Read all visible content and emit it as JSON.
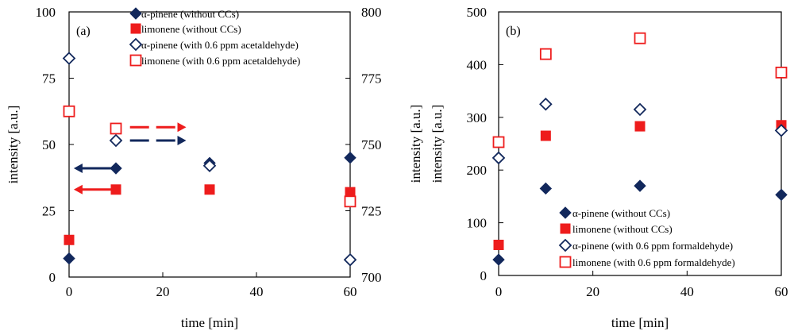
{
  "colors": {
    "navy": "#12285c",
    "red": "#ee1c1c"
  },
  "chart_data": [
    {
      "type": "scatter",
      "panel_label": "(a)",
      "xlabel": "time [min]",
      "ylabel": "intensity [a.u.]",
      "xlim": [
        0,
        60
      ],
      "xticks": [
        "0",
        "20",
        "40",
        "60"
      ],
      "ylim_left": [
        0,
        100
      ],
      "yticks_left": [
        "0",
        "25",
        "50",
        "75",
        "100"
      ],
      "ylim_right": [
        700,
        800
      ],
      "yticks_right": [
        "700",
        "725",
        "750",
        "775",
        "800"
      ],
      "series": [
        {
          "name": "α-pinene (without CCs)",
          "marker": "diamond-filled",
          "color": "navy",
          "axis": "left",
          "points": [
            {
              "x": 0,
              "y": 7
            },
            {
              "x": 10,
              "y": 41
            },
            {
              "x": 30,
              "y": 43
            },
            {
              "x": 60,
              "y": 45
            }
          ]
        },
        {
          "name": "limonene (without CCs)",
          "marker": "square-filled",
          "color": "red",
          "axis": "left",
          "points": [
            {
              "x": 0,
              "y": 14
            },
            {
              "x": 10,
              "y": 33
            },
            {
              "x": 30,
              "y": 33
            },
            {
              "x": 60,
              "y": 32
            }
          ]
        },
        {
          "name": "α-pinene (with 0.6 ppm acetaldehyde)",
          "marker": "diamond-open",
          "color": "navy",
          "axis": "right",
          "points": [
            {
              "x": 0,
              "y": 782.5
            },
            {
              "x": 10,
              "y": 751.5
            },
            {
              "x": 30,
              "y": 742
            },
            {
              "x": 60,
              "y": 706.5
            }
          ]
        },
        {
          "name": "limonene (with 0.6 ppm acetaldehyde)",
          "marker": "square-open",
          "color": "red",
          "axis": "right",
          "points": [
            {
              "x": 0,
              "y": 762.5
            },
            {
              "x": 10,
              "y": 756
            },
            {
              "x": 60,
              "y": 728.5
            }
          ]
        }
      ],
      "arrows": [
        {
          "color": "navy",
          "style": "solid",
          "axis": "left",
          "y": 41,
          "x_from": 9,
          "x_to": 1
        },
        {
          "color": "red",
          "style": "solid",
          "axis": "left",
          "y": 33,
          "x_from": 9,
          "x_to": 1
        },
        {
          "color": "navy",
          "style": "dashed",
          "axis": "right",
          "y": 751.5,
          "x_from": 13,
          "x_to": 25
        },
        {
          "color": "red",
          "style": "dashed",
          "axis": "right",
          "y": 756.5,
          "x_from": 13,
          "x_to": 25
        }
      ]
    },
    {
      "type": "scatter",
      "panel_label": "(b)",
      "xlabel": "time [min]",
      "ylabel": "intensity [a.u.]",
      "ylabel2": "intensity [a.u.]",
      "xlim": [
        0,
        60
      ],
      "xticks": [
        "0",
        "20",
        "40",
        "60"
      ],
      "ylim": [
        0,
        500
      ],
      "yticks": [
        "0",
        "100",
        "200",
        "300",
        "400",
        "500"
      ],
      "series": [
        {
          "name": "α-pinene (without CCs)",
          "marker": "diamond-filled",
          "color": "navy",
          "points": [
            {
              "x": 0,
              "y": 30
            },
            {
              "x": 10,
              "y": 165
            },
            {
              "x": 30,
              "y": 170
            },
            {
              "x": 60,
              "y": 153
            }
          ]
        },
        {
          "name": "limonene (without CCs)",
          "marker": "square-filled",
          "color": "red",
          "points": [
            {
              "x": 0,
              "y": 58
            },
            {
              "x": 10,
              "y": 265
            },
            {
              "x": 30,
              "y": 283
            },
            {
              "x": 60,
              "y": 285
            }
          ]
        },
        {
          "name": "α-pinene (with 0.6 ppm formaldehyde)",
          "marker": "diamond-open",
          "color": "navy",
          "points": [
            {
              "x": 0,
              "y": 223
            },
            {
              "x": 10,
              "y": 325
            },
            {
              "x": 30,
              "y": 315
            },
            {
              "x": 60,
              "y": 275
            }
          ]
        },
        {
          "name": "limonene (with 0.6 ppm formaldehyde)",
          "marker": "square-open",
          "color": "red",
          "points": [
            {
              "x": 0,
              "y": 253
            },
            {
              "x": 10,
              "y": 420
            },
            {
              "x": 30,
              "y": 450
            },
            {
              "x": 60,
              "y": 385
            }
          ]
        }
      ]
    }
  ]
}
